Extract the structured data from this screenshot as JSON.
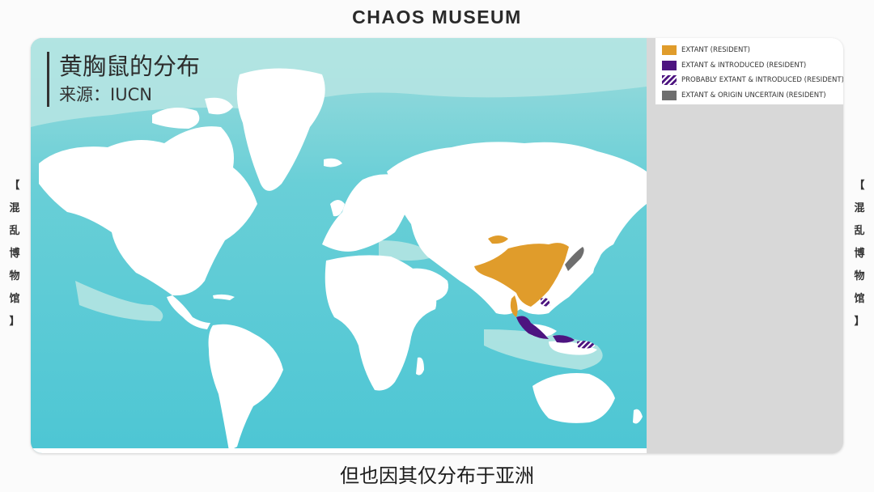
{
  "header": {
    "brand": "CHAOS MUSEUM"
  },
  "side_label": {
    "open": "【",
    "chars": [
      "混",
      "乱",
      "博",
      "物",
      "馆"
    ],
    "close": "】"
  },
  "map": {
    "title": "黄胸鼠的分布",
    "source": "来源：IUCN",
    "colors": {
      "ocean": "#5ccbd6",
      "shelf": "#b4e4e2",
      "land": "#ffffff",
      "extant": "#e09c2b",
      "introduced": "#4d1480",
      "uncertain": "#6e6e6e"
    },
    "legend": [
      {
        "label": "EXTANT (RESIDENT)",
        "color": "#e09c2b",
        "pattern": "solid"
      },
      {
        "label": "EXTANT & INTRODUCED (RESIDENT)",
        "color": "#4d1480",
        "pattern": "solid"
      },
      {
        "label": "PROBABLY EXTANT & INTRODUCED (RESIDENT)",
        "color": "#4d1480",
        "pattern": "hatched"
      },
      {
        "label": "EXTANT & ORIGIN UNCERTAIN (RESIDENT)",
        "color": "#6e6e6e",
        "pattern": "solid"
      }
    ]
  },
  "caption": {
    "text": "但也因其仅分布于亚洲"
  }
}
